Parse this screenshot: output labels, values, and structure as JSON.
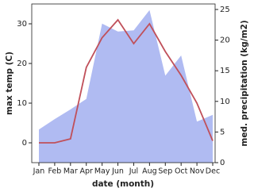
{
  "chart_data": {
    "type": "line-area",
    "x_label": "date (month)",
    "y_label": "max temp (C)",
    "y2_label": "med. precipitation (kg/m2)",
    "categories": [
      "Jan",
      "Feb",
      "Mar",
      "Apr",
      "May",
      "Jun",
      "Jul",
      "Aug",
      "Sep",
      "Oct",
      "Nov",
      "Dec"
    ],
    "series": [
      {
        "name": "med. precipitation",
        "kind": "area",
        "axis": "y2",
        "color": "#b0bbf2",
        "values": [
          5.4,
          7.1,
          8.7,
          10.4,
          22.7,
          21.4,
          21.6,
          24.9,
          14.2,
          17.5,
          6.7,
          7.8
        ]
      },
      {
        "name": "max temp",
        "kind": "line",
        "axis": "y",
        "color": "#c0505a",
        "values": [
          0,
          0,
          1,
          19,
          26.5,
          31,
          25,
          30,
          23,
          17,
          10,
          0.5
        ]
      }
    ],
    "ylim": [
      -5,
      35
    ],
    "yticks": [
      0,
      10,
      20,
      30
    ],
    "y2lim": [
      0,
      25.9
    ],
    "y2ticks": [
      0,
      5,
      10,
      15,
      20,
      25
    ]
  }
}
